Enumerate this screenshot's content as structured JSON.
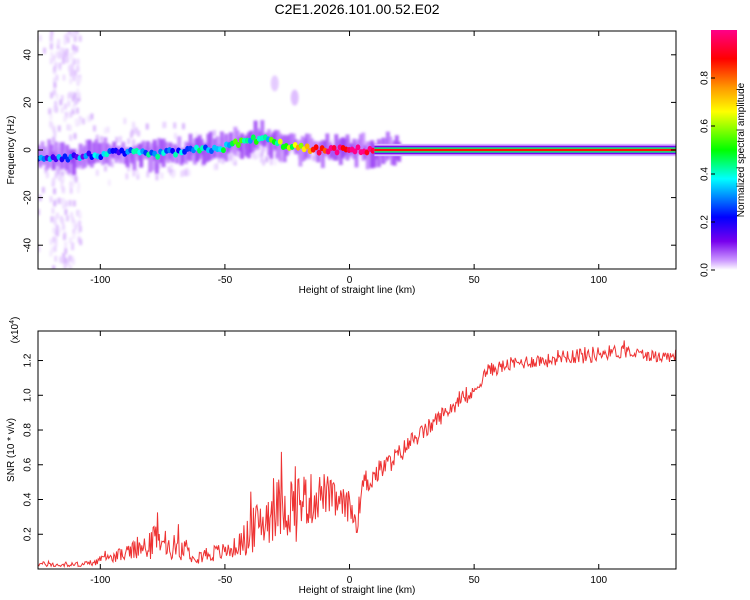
{
  "title": "C2E1.2026.101.00.52.E02",
  "chart_data": [
    {
      "type": "heatmap",
      "name": "spectrogram",
      "xlabel": "Height of straight line (km)",
      "ylabel": "Frequency (Hz)",
      "xlim": [
        -125,
        131
      ],
      "ylim": [
        -50,
        50
      ],
      "xticks": [
        -100,
        -50,
        0,
        50,
        100
      ],
      "yticks": [
        -40,
        -20,
        0,
        20,
        40
      ],
      "colorbar": {
        "label": "Normalized spectral amplitude",
        "range": [
          0,
          1
        ],
        "ticks": [
          "0.0",
          "0.2",
          "0.4",
          "0.6",
          "0.8"
        ],
        "tick_values": [
          0.0,
          0.2,
          0.4,
          0.6,
          0.8
        ],
        "colormap": [
          "#ffffff",
          "#cc99ff",
          "#7700ee",
          "#0000ff",
          "#00ffff",
          "#00ff00",
          "#ffff00",
          "#ff9900",
          "#ff0000",
          "#ff0088"
        ]
      },
      "ridge": {
        "x": [
          -125,
          -110,
          -100,
          -90,
          -80,
          -70,
          -60,
          -50,
          -45,
          -40,
          -35,
          -30,
          -25,
          -20,
          -15,
          -10,
          -5,
          0,
          5,
          10,
          131
        ],
        "freq": [
          -3,
          -3,
          -2,
          -1,
          -2,
          -1,
          0,
          1,
          3,
          4,
          5,
          3,
          2,
          1,
          0,
          0,
          0,
          0,
          0,
          0,
          0
        ],
        "amplitude": [
          0.3,
          0.3,
          0.35,
          0.4,
          0.4,
          0.42,
          0.45,
          0.5,
          0.5,
          0.48,
          0.5,
          0.52,
          0.6,
          0.65,
          0.8,
          0.9,
          0.95,
          1.0,
          1.0,
          1.0,
          1.0
        ]
      },
      "features": [
        {
          "x": -22,
          "freq": 22,
          "amplitude": 0.1
        },
        {
          "x": -30,
          "freq": 28,
          "amplitude": 0.08
        }
      ]
    },
    {
      "type": "line",
      "name": "snr",
      "xlabel": "Height of straight line (km)",
      "ylabel": "SNR (10 * v/v)",
      "yscale_label": "(x10",
      "yscale_exponent": "4",
      "scale": 10000,
      "xlim": [
        -125,
        131
      ],
      "ylim": [
        0,
        13700
      ],
      "xticks": [
        -100,
        -50,
        0,
        50,
        100
      ],
      "yticks": [
        0.2,
        0.4,
        0.6,
        0.8,
        1.0,
        1.2
      ],
      "color": "#ee3333",
      "series": [
        {
          "name": "SNR",
          "x": [
            -125,
            -115,
            -105,
            -100,
            -95,
            -90,
            -85,
            -80,
            -77,
            -75,
            -70,
            -65,
            -60,
            -55,
            -50,
            -45,
            -40,
            -35,
            -30,
            -25,
            -22,
            -20,
            -15,
            -10,
            -5,
            0,
            3,
            5,
            10,
            15,
            20,
            25,
            30,
            35,
            40,
            45,
            48,
            50,
            55,
            60,
            65,
            70,
            75,
            80,
            85,
            90,
            95,
            100,
            105,
            110,
            115,
            120,
            125,
            131
          ],
          "y": [
            300,
            200,
            300,
            500,
            700,
            900,
            1100,
            1300,
            2200,
            1200,
            1300,
            1000,
            800,
            900,
            1000,
            1300,
            2000,
            2800,
            3400,
            3700,
            3500,
            4000,
            4000,
            4400,
            3800,
            3600,
            2600,
            4800,
            5400,
            6000,
            6600,
            7400,
            7900,
            8600,
            9200,
            9700,
            9900,
            10200,
            11400,
            11600,
            11800,
            11900,
            12000,
            12000,
            12300,
            12300,
            12300,
            12400,
            12500,
            12500,
            12400,
            12300,
            12200,
            12300
          ],
          "noise": [
            150,
            120,
            180,
            220,
            300,
            450,
            600,
            800,
            1200,
            700,
            700,
            600,
            500,
            500,
            500,
            600,
            1200,
            1600,
            1800,
            1900,
            2300,
            1700,
            1500,
            1200,
            1000,
            900,
            600,
            900,
            700,
            600,
            600,
            500,
            500,
            500,
            450,
            400,
            350,
            350,
            400,
            400,
            400,
            400,
            400,
            400,
            450,
            500,
            500,
            450,
            400,
            400,
            350,
            350,
            350,
            350
          ]
        }
      ]
    }
  ]
}
